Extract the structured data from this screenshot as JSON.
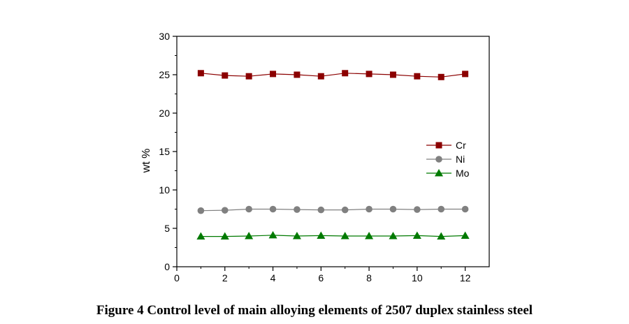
{
  "chart_data": {
    "type": "line",
    "title": "",
    "xlabel": "",
    "ylabel": "wt %",
    "xlim": [
      0,
      13
    ],
    "ylim": [
      0,
      30
    ],
    "xticks": [
      0,
      2,
      4,
      6,
      8,
      10,
      12
    ],
    "yticks": [
      0,
      5,
      10,
      15,
      20,
      25,
      30
    ],
    "grid": false,
    "legend_position": "center-right",
    "x": [
      1,
      2,
      3,
      4,
      5,
      6,
      7,
      8,
      9,
      10,
      11,
      12
    ],
    "series": [
      {
        "name": "Cr",
        "marker": "square",
        "color": "#8b0000",
        "values": [
          25.2,
          24.9,
          24.8,
          25.1,
          25.0,
          24.8,
          25.2,
          25.1,
          25.0,
          24.8,
          24.7,
          25.1
        ]
      },
      {
        "name": "Ni",
        "marker": "circle",
        "color": "#808080",
        "values": [
          7.3,
          7.35,
          7.5,
          7.5,
          7.45,
          7.4,
          7.4,
          7.5,
          7.5,
          7.45,
          7.5,
          7.5
        ]
      },
      {
        "name": "Mo",
        "marker": "triangle",
        "color": "#007a00",
        "values": [
          3.95,
          3.95,
          4.0,
          4.1,
          4.0,
          4.05,
          4.0,
          4.0,
          4.0,
          4.05,
          3.95,
          4.05
        ]
      }
    ]
  },
  "caption": "Figure 4 Control level of main alloying elements of 2507 duplex stainless steel"
}
